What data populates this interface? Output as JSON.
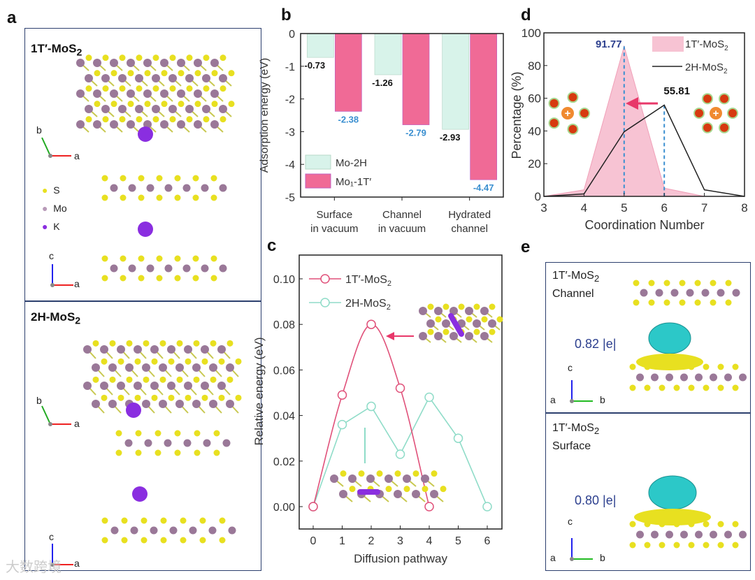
{
  "panel_labels": [
    "a",
    "b",
    "c",
    "d",
    "e"
  ],
  "panel_a": {
    "top_title": "1T′-MoS",
    "top_title_sub": "2",
    "bottom_title": "2H-MoS",
    "bottom_title_sub": "2",
    "axes": {
      "b": "b",
      "a": "a",
      "c": "c"
    },
    "legend": [
      {
        "label": "S",
        "color": "#e8e020"
      },
      {
        "label": "Mo",
        "color": "#b89ab8"
      },
      {
        "label": "K",
        "color": "#8a2ee0"
      }
    ]
  },
  "panel_e": {
    "top": {
      "line1": "1T′-MoS",
      "sub": "2",
      "line2": "Channel",
      "charge": "0.82 |e|"
    },
    "bottom": {
      "line1": "1T′-MoS",
      "sub": "2",
      "line2": "Surface",
      "charge": "0.80 |e|"
    },
    "axes": {
      "a": "a",
      "b": "b",
      "c": "c"
    }
  },
  "watermark": "大数跨境",
  "chart_data": [
    {
      "id": "b",
      "type": "bar",
      "ylabel": "Adsorption energy (eV)",
      "categories": [
        "Surface\nin vacuum",
        "Channel\nin vacuum",
        "Hydrated\nchannel"
      ],
      "category_lines": [
        [
          "Surface",
          "in vacuum"
        ],
        [
          "Channel",
          "in vacuum"
        ],
        [
          "Hydrated",
          "channel"
        ]
      ],
      "series": [
        {
          "name": "Mo-2H",
          "color": "#d8f3ea",
          "label_color": "#111",
          "values": [
            -0.73,
            -1.26,
            -2.93
          ],
          "labels": [
            "-0.73",
            "-1.26",
            "-2.93"
          ]
        },
        {
          "name": "Mo₁-1T′",
          "color": "#f06a96",
          "label_color": "#3a8fd0",
          "values": [
            -2.38,
            -2.79,
            -4.47
          ],
          "labels": [
            "-2.38",
            "-2.79",
            "-4.47"
          ]
        }
      ],
      "ylim": [
        -5,
        0
      ],
      "yticks": [
        "0",
        "-1",
        "-2",
        "-3",
        "-4",
        "-5"
      ],
      "legend": "bottom-left"
    },
    {
      "id": "c",
      "type": "line",
      "xlabel": "Diffusion pathway",
      "ylabel": "Relative energy (eV)",
      "xlim": [
        -0.3,
        6.5
      ],
      "ylim": [
        -0.01,
        0.11
      ],
      "xticks": [
        "0",
        "1",
        "2",
        "3",
        "4",
        "5",
        "6"
      ],
      "yticks": [
        "0.00",
        "0.02",
        "0.04",
        "0.06",
        "0.08",
        "0.10"
      ],
      "series": [
        {
          "name": "1T′-MoS",
          "sub": "2",
          "color": "#e0517a",
          "x": [
            0,
            1,
            2,
            3,
            4
          ],
          "y": [
            0,
            0.049,
            0.08,
            0.052,
            0
          ],
          "smooth": true
        },
        {
          "name": "2H-MoS",
          "sub": "2",
          "color": "#8fdcc8",
          "x": [
            0,
            1,
            2,
            3,
            4,
            5,
            6
          ],
          "y": [
            0,
            0.036,
            0.044,
            0.023,
            0.048,
            0.03,
            0
          ],
          "smooth": false
        }
      ],
      "legend": "top-left"
    },
    {
      "id": "d",
      "type": "area",
      "xlabel": "Coordination Number",
      "ylabel": "Percentage (%)",
      "xlim": [
        3,
        8
      ],
      "ylim": [
        0,
        100
      ],
      "xticks": [
        "3",
        "4",
        "5",
        "6",
        "7",
        "8"
      ],
      "yticks": [
        "0",
        "20",
        "40",
        "60",
        "80",
        "100"
      ],
      "series": [
        {
          "name": "1T′-MoS",
          "sub": "2",
          "color": "#f7c3d3",
          "x": [
            3,
            4,
            5,
            6,
            7,
            8
          ],
          "y": [
            0,
            4,
            91.77,
            5,
            0,
            0
          ]
        },
        {
          "name": "2H-MoS",
          "sub": "2",
          "color": "#222222",
          "x": [
            3,
            4,
            5,
            6,
            7,
            8
          ],
          "y": [
            0,
            1.5,
            39.5,
            55.81,
            4,
            0
          ]
        }
      ],
      "annotations": [
        {
          "text": "91.77",
          "color": "#2c3f8e"
        },
        {
          "text": "55.81",
          "color": "#111"
        }
      ],
      "legend": "top-right"
    }
  ]
}
